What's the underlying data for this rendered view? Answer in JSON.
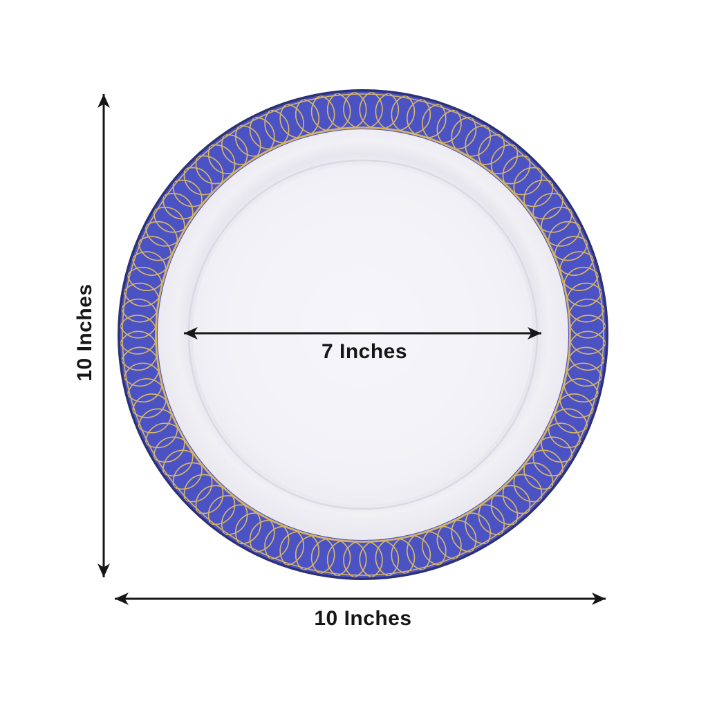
{
  "labels": {
    "height": "10 Inches",
    "width": "10 Inches",
    "inner_diameter": "7 Inches"
  },
  "colors": {
    "rim_blue": "#4b52c4",
    "rim_edge_navy": "#2c3178",
    "pattern_gold": "#d4b466",
    "plate_white": "#f4f3f8",
    "arrow_black": "#161616",
    "background": "#ffffff"
  },
  "icons": {
    "plate": "round-plate-blue-gold-spiral-rim",
    "arrows": "double-headed-dimension-arrow"
  }
}
